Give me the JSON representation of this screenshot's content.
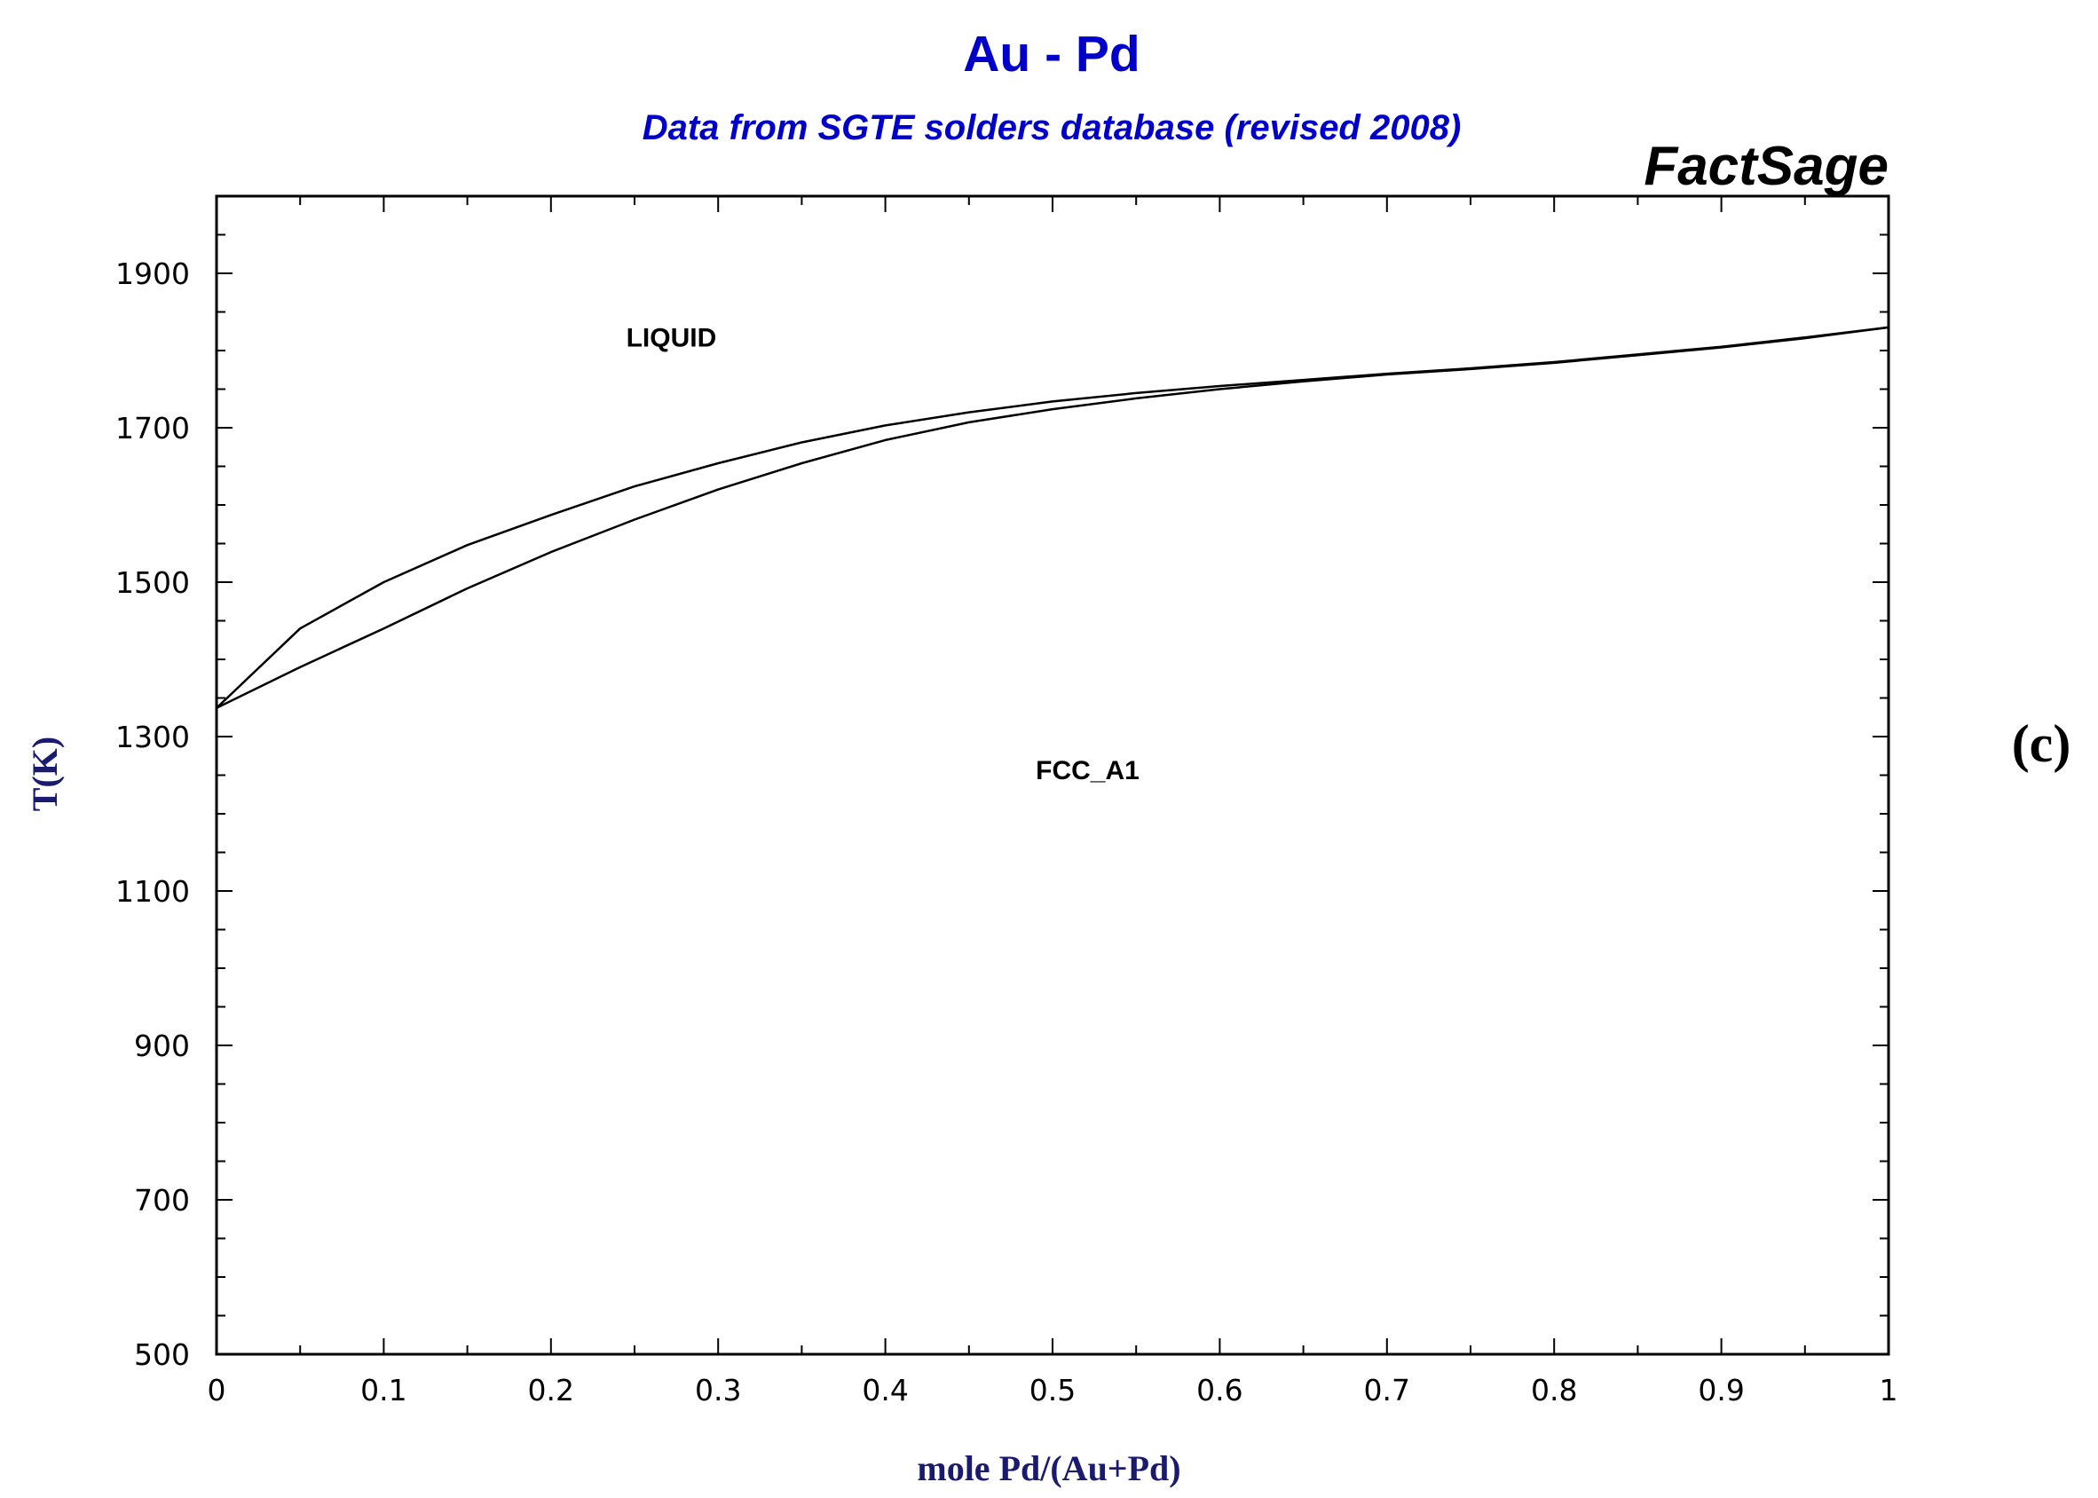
{
  "chart_data": {
    "type": "line",
    "title": "Au - Pd",
    "subtitle": "Data from SGTE solders database (revised 2008)",
    "brand": "FactSage",
    "panel_label": "(c)",
    "xlabel": "mole Pd/(Au+Pd)",
    "ylabel": "T(K)",
    "xlim": [
      0,
      1
    ],
    "ylim": [
      500,
      2000
    ],
    "x_ticks": [
      "0",
      "0.1",
      "0.2",
      "0.3",
      "0.4",
      "0.5",
      "0.6",
      "0.7",
      "0.8",
      "0.9",
      "1"
    ],
    "x_tick_values": [
      0,
      0.1,
      0.2,
      0.3,
      0.4,
      0.5,
      0.6,
      0.7,
      0.8,
      0.9,
      1
    ],
    "y_ticks": [
      "500",
      "700",
      "900",
      "1100",
      "1300",
      "1500",
      "1700",
      "1900"
    ],
    "y_tick_values": [
      500,
      700,
      900,
      1100,
      1300,
      1500,
      1700,
      1900
    ],
    "grid": false,
    "series": [
      {
        "x": [
          0,
          0.05,
          0.1,
          0.15,
          0.2,
          0.25,
          0.3,
          0.35,
          0.4,
          0.45,
          0.5,
          0.55,
          0.6,
          0.65,
          0.7,
          0.75,
          0.8,
          0.85,
          0.9,
          0.95,
          1
        ],
        "values": [
          1337,
          1440,
          1500,
          1548,
          1587,
          1624,
          1654,
          1681,
          1703,
          1720,
          1734,
          1745,
          1754,
          1762,
          1770,
          1777,
          1785,
          1795,
          1805,
          1817,
          1830
        ]
      },
      {
        "x": [
          0,
          0.05,
          0.1,
          0.15,
          0.2,
          0.25,
          0.3,
          0.35,
          0.4,
          0.45,
          0.5,
          0.55,
          0.6,
          0.65,
          0.7,
          0.75,
          0.8,
          0.85,
          0.9,
          0.95,
          1
        ],
        "values": [
          1337,
          1390,
          1440,
          1492,
          1539,
          1581,
          1620,
          1654,
          1684,
          1707,
          1724,
          1738,
          1750,
          1760,
          1769,
          1776,
          1784,
          1794,
          1804,
          1816,
          1830
        ]
      }
    ],
    "annotations": [
      {
        "text": "LIQUID",
        "x": 0.245,
        "y": 1805
      },
      {
        "text": "FCC_A1",
        "x": 0.49,
        "y": 1245
      }
    ]
  }
}
